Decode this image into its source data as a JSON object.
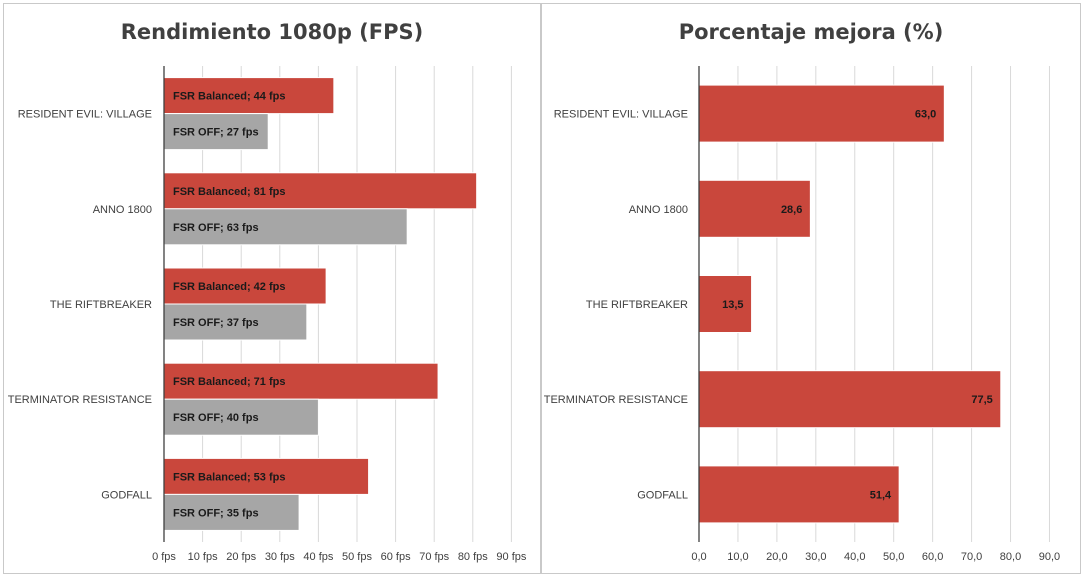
{
  "chart_data": [
    {
      "type": "bar",
      "orientation": "horizontal",
      "title": "Rendimiento 1080p (FPS)",
      "categories": [
        "RESIDENT EVIL: VILLAGE",
        "ANNO 1800",
        "THE RIFTBREAKER",
        "TERMINATOR RESISTANCE",
        "GODFALL"
      ],
      "series": [
        {
          "name": "FSR Balanced",
          "color": "#c9473c",
          "values": [
            44,
            81,
            42,
            71,
            53
          ],
          "labels": [
            "FSR Balanced; 44 fps",
            "FSR Balanced; 81 fps",
            "FSR Balanced; 42 fps",
            "FSR Balanced; 71 fps",
            "FSR Balanced; 53 fps"
          ]
        },
        {
          "name": "FSR OFF",
          "color": "#a6a6a6",
          "values": [
            27,
            63,
            37,
            40,
            35
          ],
          "labels": [
            "FSR OFF; 27 fps",
            "FSR OFF; 63 fps",
            "FSR OFF; 37 fps",
            "FSR OFF; 40 fps",
            "FSR OFF; 35 fps"
          ]
        }
      ],
      "xlim": [
        0,
        90
      ],
      "ticks": [
        "0 fps",
        "10 fps",
        "20 fps",
        "30 fps",
        "40 fps",
        "50 fps",
        "60 fps",
        "70 fps",
        "80 fps",
        "90 fps"
      ],
      "grid": true,
      "legend": "none"
    },
    {
      "type": "bar",
      "orientation": "horizontal",
      "title": "Porcentaje mejora (%)",
      "categories": [
        "RESIDENT EVIL: VILLAGE",
        "ANNO 1800",
        "THE RIFTBREAKER",
        "TERMINATOR RESISTANCE",
        "GODFALL"
      ],
      "series": [
        {
          "color": "#c9473c",
          "values": [
            63.0,
            28.6,
            13.5,
            77.5,
            51.4
          ],
          "labels": [
            "63,0",
            "28,6",
            "13,5",
            "77,5",
            "51,4"
          ]
        }
      ],
      "xlim": [
        0,
        90
      ],
      "ticks": [
        "0,0",
        "10,0",
        "20,0",
        "30,0",
        "40,0",
        "50,0",
        "60,0",
        "70,0",
        "80,0",
        "90,0"
      ],
      "grid": true,
      "legend": "none"
    }
  ]
}
